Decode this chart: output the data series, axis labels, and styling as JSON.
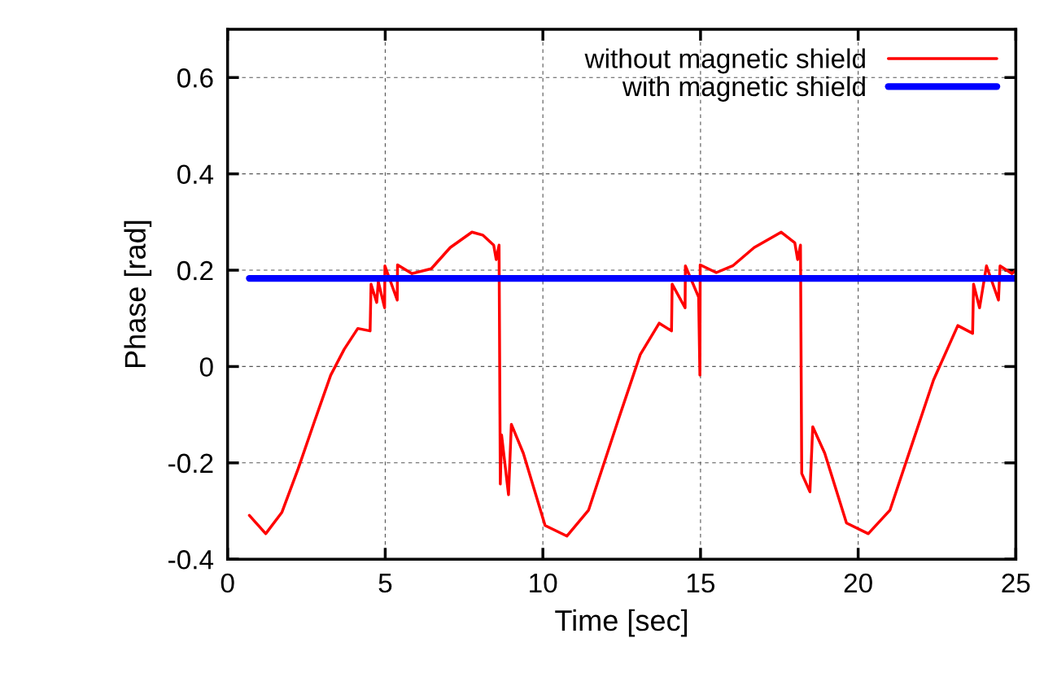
{
  "chart_data": {
    "type": "line",
    "xlabel": "Time [sec]",
    "ylabel": "Phase [rad]",
    "xlim": [
      0,
      25
    ],
    "ylim": [
      -0.4,
      0.7
    ],
    "xticks": [
      0,
      5,
      10,
      15,
      20,
      25
    ],
    "yticks": [
      -0.4,
      -0.2,
      0,
      0.2,
      0.4,
      0.6
    ],
    "grid": true,
    "legend": "top right",
    "marker": "none",
    "line_style": "solid",
    "series": [
      {
        "name": "without magnetic shield",
        "color": "#ff0000",
        "x": [
          0.69,
          1.21,
          1.72,
          2.24,
          2.75,
          3.27,
          3.7,
          4.13,
          4.52,
          4.55,
          4.73,
          4.78,
          4.98,
          4.99,
          5.38,
          5.39,
          5.85,
          6.46,
          7.06,
          7.75,
          8.09,
          8.44,
          8.52,
          8.61,
          8.65,
          8.69,
          8.91,
          9.0,
          9.38,
          10.07,
          10.76,
          11.45,
          12.4,
          13.09,
          13.69,
          14.08,
          14.1,
          14.51,
          14.52,
          14.94,
          14.98,
          14.99,
          15.5,
          16.02,
          16.7,
          17.56,
          17.99,
          18.08,
          18.17,
          18.21,
          18.47,
          18.56,
          18.94,
          19.63,
          20.32,
          21.01,
          21.7,
          22.39,
          23.16,
          23.63,
          23.66,
          23.85,
          24.07,
          24.45,
          24.5,
          24.88,
          25.0
        ],
        "values": [
          -0.309,
          -0.347,
          -0.303,
          -0.212,
          -0.115,
          -0.018,
          0.036,
          0.079,
          0.074,
          0.171,
          0.133,
          0.176,
          0.122,
          0.209,
          0.138,
          0.211,
          0.193,
          0.203,
          0.247,
          0.279,
          0.273,
          0.252,
          0.222,
          0.252,
          -0.244,
          -0.142,
          -0.266,
          -0.12,
          -0.18,
          -0.33,
          -0.352,
          -0.298,
          -0.109,
          0.025,
          0.09,
          0.074,
          0.171,
          0.122,
          0.209,
          0.144,
          -0.018,
          0.211,
          0.195,
          0.209,
          0.247,
          0.279,
          0.257,
          0.222,
          0.252,
          -0.222,
          -0.26,
          -0.125,
          -0.18,
          -0.325,
          -0.347,
          -0.298,
          -0.163,
          -0.028,
          0.085,
          0.069,
          0.171,
          0.122,
          0.209,
          0.138,
          0.209,
          0.193,
          0.2
        ]
      },
      {
        "name": "with magnetic shield",
        "color": "#0000ff",
        "x": [
          0.69,
          5,
          10,
          15,
          20,
          25
        ],
        "values": [
          0.183,
          0.183,
          0.183,
          0.183,
          0.183,
          0.183
        ]
      }
    ]
  }
}
